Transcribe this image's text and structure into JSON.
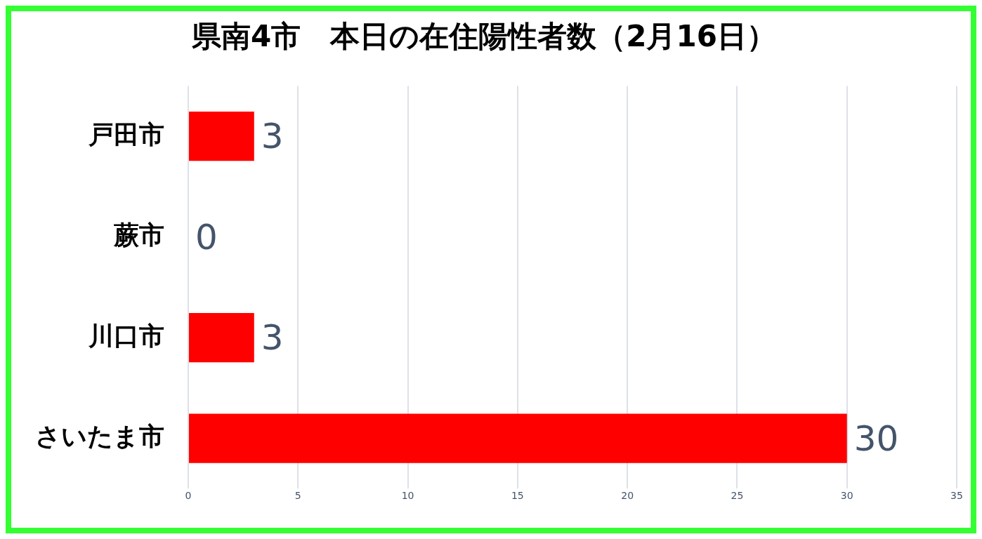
{
  "chart_data": {
    "type": "bar",
    "orientation": "horizontal",
    "title": "県南4市　本日の在住陽性者数（2月16日）",
    "categories": [
      "戸田市",
      "蕨市",
      "川口市",
      "さいたま市"
    ],
    "values": [
      3,
      0,
      3,
      30
    ],
    "color": "#ff0000",
    "xlim": [
      0,
      35
    ],
    "xticks": [
      0,
      5,
      10,
      15,
      20,
      25,
      30,
      35
    ],
    "grid": "x",
    "data_labels": true,
    "legend": false
  }
}
